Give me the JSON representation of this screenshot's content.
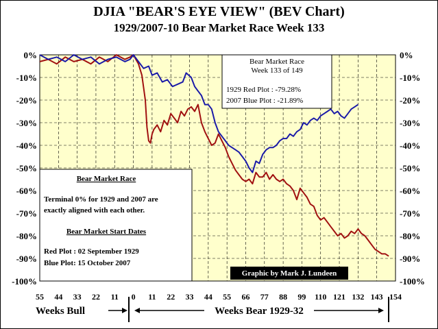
{
  "title": "DJIA \"BEAR'S EYE VIEW\" (BEV Chart)",
  "subtitle": "1929/2007-10  Bear Market Race Week 133",
  "colors": {
    "plot_bg": "#ffffcc",
    "red_series": "#a01010",
    "blue_series": "#1a1aa8",
    "grid": "#000000",
    "credit_bg": "#000000",
    "credit_fg": "#ffffff"
  },
  "info_box": {
    "title_line1": "Bear Market Race",
    "title_line2": "Week 133 of 149",
    "red_label": "1929 Red Plot  : -79.28%",
    "blue_label": "2007 Blue Plot : -21.89%"
  },
  "notes_box": {
    "heading1": "Bear Market Race",
    "text_line1": "Terminal 0% for 1929 and 2007 are",
    "text_line2": "exactly aligned with each other.",
    "heading2": "Bear Market Start Dates",
    "red_date": "Red Plot :  02 September 1929",
    "blue_date": "Blue Plot:  15 October 2007"
  },
  "credit": "Graphic by Mark J. Lundeen",
  "bottom_labels": {
    "bull": "Weeks Bull",
    "bear": "Weeks Bear 1929-32"
  },
  "chart_data": {
    "type": "line",
    "xlim": [
      -55,
      154
    ],
    "ylim": [
      -100,
      0
    ],
    "grid": true,
    "x_ticks": [
      {
        "value": -55,
        "label": "55"
      },
      {
        "value": -44,
        "label": "44"
      },
      {
        "value": -33,
        "label": "33"
      },
      {
        "value": -22,
        "label": "22"
      },
      {
        "value": -11,
        "label": "11"
      },
      {
        "value": 0,
        "label": "0"
      },
      {
        "value": 11,
        "label": "11"
      },
      {
        "value": 22,
        "label": "22"
      },
      {
        "value": 33,
        "label": "33"
      },
      {
        "value": 44,
        "label": "44"
      },
      {
        "value": 55,
        "label": "55"
      },
      {
        "value": 66,
        "label": "66"
      },
      {
        "value": 77,
        "label": "77"
      },
      {
        "value": 88,
        "label": "88"
      },
      {
        "value": 99,
        "label": "99"
      },
      {
        "value": 110,
        "label": "110"
      },
      {
        "value": 121,
        "label": "121"
      },
      {
        "value": 132,
        "label": "132"
      },
      {
        "value": 143,
        "label": "143"
      },
      {
        "value": 154,
        "label": "154"
      }
    ],
    "y_ticks": [
      {
        "value": 0,
        "label": "0%"
      },
      {
        "value": -10,
        "label": "-10%"
      },
      {
        "value": -20,
        "label": "-20%"
      },
      {
        "value": -30,
        "label": "-30%"
      },
      {
        "value": -40,
        "label": "-40%"
      },
      {
        "value": -50,
        "label": "-50%"
      },
      {
        "value": -60,
        "label": "-60%"
      },
      {
        "value": -70,
        "label": "-70%"
      },
      {
        "value": -80,
        "label": "-80%"
      },
      {
        "value": -90,
        "label": "-90%"
      },
      {
        "value": -100,
        "label": "-100%"
      }
    ],
    "series": [
      {
        "name": "1929 Red Plot",
        "x": [
          -55,
          -50,
          -45,
          -40,
          -35,
          -30,
          -25,
          -20,
          -15,
          -10,
          -5,
          -2,
          0,
          3,
          5,
          7,
          8,
          9,
          10,
          11,
          12,
          14,
          16,
          18,
          20,
          22,
          24,
          26,
          28,
          30,
          32,
          34,
          36,
          38,
          40,
          42,
          44,
          46,
          48,
          50,
          52,
          54,
          56,
          58,
          60,
          62,
          64,
          66,
          68,
          70,
          72,
          74,
          76,
          78,
          80,
          82,
          84,
          86,
          88,
          90,
          92,
          94,
          96,
          98,
          100,
          102,
          104,
          106,
          108,
          110,
          112,
          114,
          116,
          118,
          120,
          122,
          124,
          126,
          128,
          130,
          132,
          134,
          136,
          138,
          140,
          142,
          144,
          146,
          148,
          150
        ],
        "y": [
          -3,
          -2,
          -4,
          -1,
          -3,
          -2,
          -4,
          -1,
          -3,
          0,
          -2,
          -1,
          0,
          -4,
          -9,
          -20,
          -32,
          -38,
          -39,
          -35,
          -33,
          -31,
          -34,
          -29,
          -31,
          -26,
          -28,
          -30,
          -25,
          -27,
          -24,
          -23,
          -25,
          -22,
          -30,
          -34,
          -37,
          -40,
          -39,
          -35,
          -38,
          -41,
          -45,
          -48,
          -51,
          -53,
          -55,
          -56,
          -55,
          -57,
          -52,
          -54,
          -54,
          -52,
          -55,
          -53,
          -55,
          -56,
          -55,
          -57,
          -58,
          -60,
          -64,
          -59,
          -61,
          -63,
          -66,
          -67,
          -71,
          -73,
          -72,
          -74,
          -76,
          -78,
          -80,
          -79,
          -81,
          -80,
          -78,
          -79,
          -77,
          -79,
          -80,
          -82,
          -84,
          -86,
          -87,
          -88,
          -88,
          -89
        ]
      },
      {
        "name": "2007 Blue Plot",
        "x": [
          -55,
          -50,
          -45,
          -40,
          -35,
          -30,
          -25,
          -20,
          -15,
          -10,
          -5,
          -2,
          0,
          3,
          6,
          9,
          11,
          14,
          17,
          20,
          23,
          26,
          29,
          31,
          34,
          36,
          38,
          40,
          42,
          44,
          46,
          48,
          50,
          52,
          54,
          56,
          58,
          60,
          62,
          64,
          66,
          68,
          70,
          72,
          74,
          76,
          78,
          80,
          82,
          84,
          86,
          88,
          90,
          92,
          94,
          96,
          98,
          100,
          102,
          104,
          106,
          108,
          110,
          112,
          114,
          116,
          118,
          120,
          122,
          124,
          126,
          128,
          130,
          132
        ],
        "y": [
          0,
          -2,
          -1,
          -3,
          0,
          -2,
          -1,
          -4,
          -2,
          -1,
          -3,
          -2,
          0,
          -3,
          -6,
          -5,
          -9,
          -8,
          -12,
          -11,
          -14,
          -13,
          -12,
          -8,
          -10,
          -14,
          -16,
          -18,
          -22,
          -22,
          -24,
          -30,
          -34,
          -36,
          -38,
          -40,
          -41,
          -42,
          -43,
          -45,
          -47,
          -50,
          -52,
          -47,
          -48,
          -44,
          -42,
          -41,
          -41,
          -40,
          -38,
          -37,
          -37,
          -35,
          -36,
          -34,
          -33,
          -30,
          -31,
          -29,
          -28,
          -29,
          -27,
          -26,
          -25,
          -24,
          -26,
          -25,
          -27,
          -28,
          -26,
          -24,
          -23,
          -22
        ]
      }
    ]
  }
}
